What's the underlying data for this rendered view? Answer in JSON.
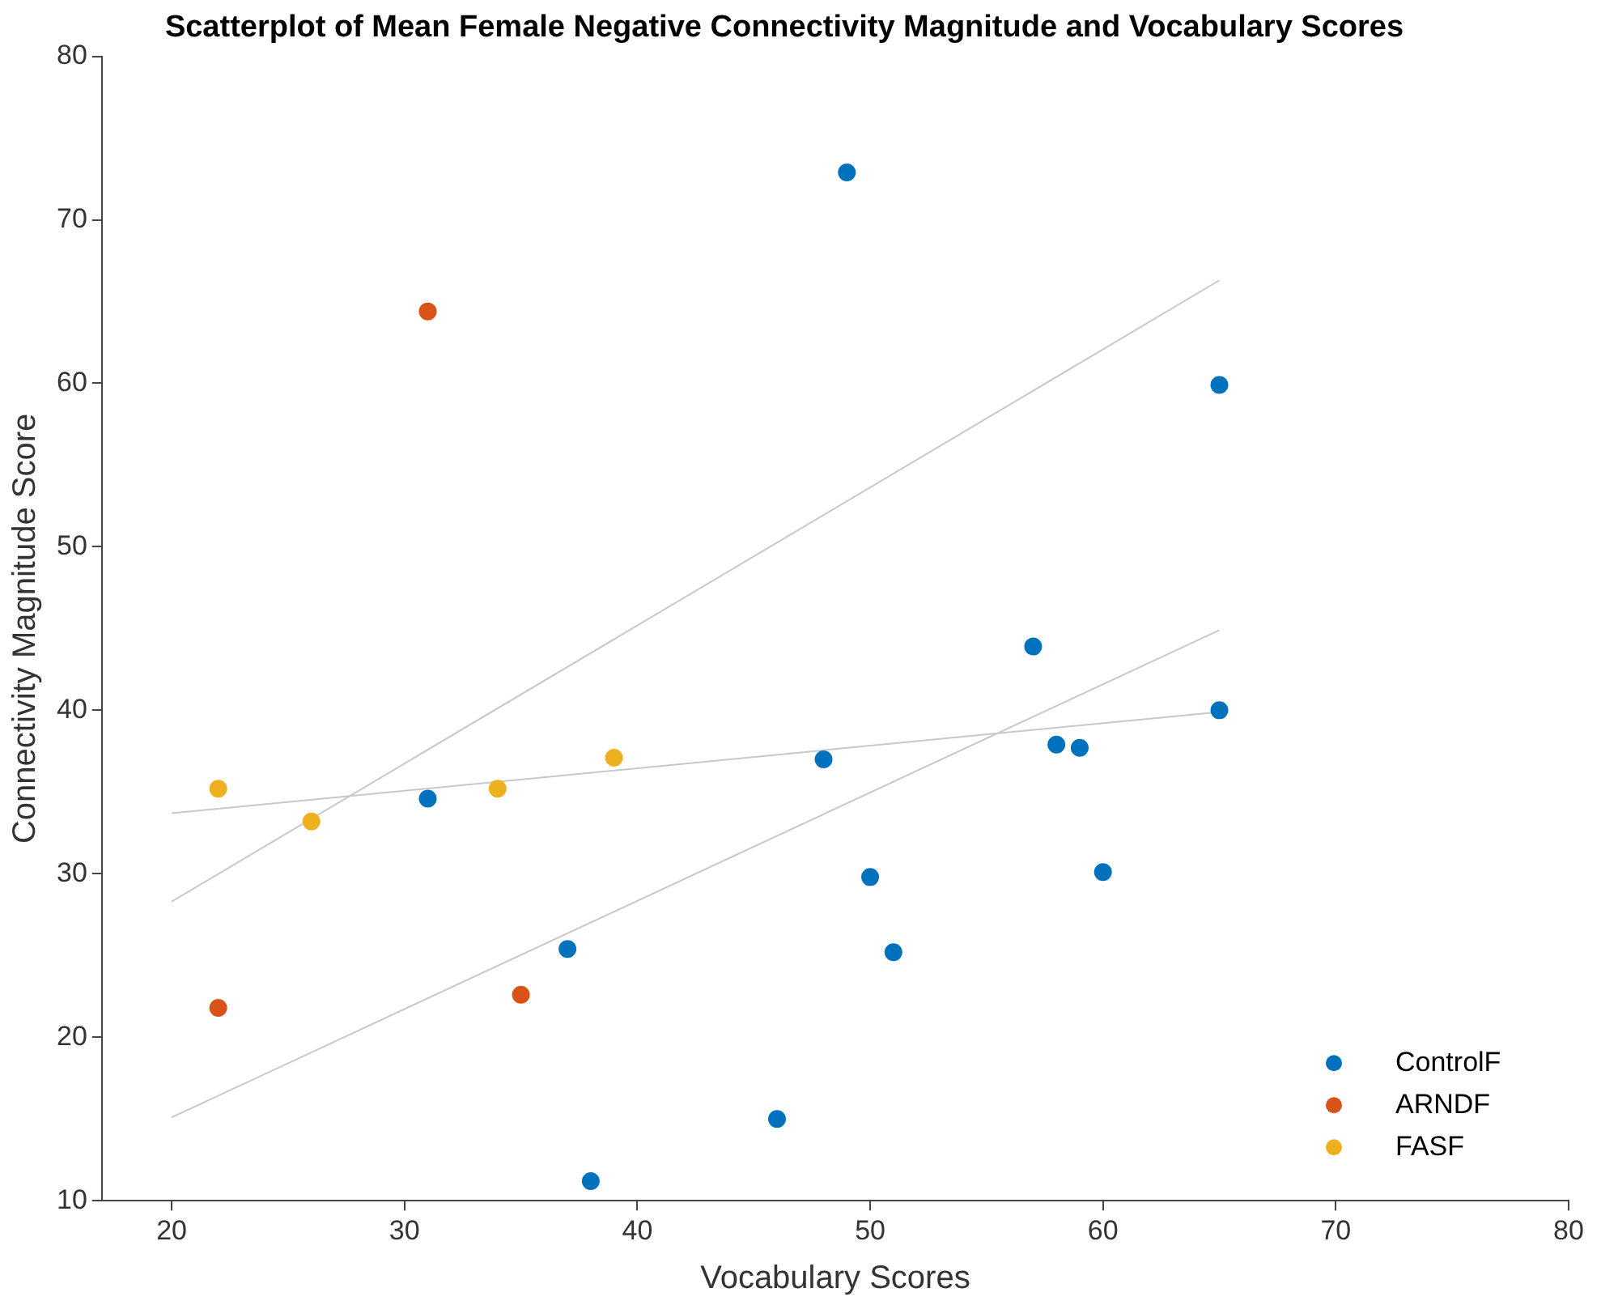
{
  "chart_data": {
    "type": "scatter",
    "title": "Scatterplot of Mean Female Negative Connectivity Magnitude and Vocabulary Scores",
    "xlabel": "Vocabulary Scores",
    "ylabel": "Connectivity Magnitude Score",
    "xlim": [
      17,
      80
    ],
    "ylim": [
      10,
      80
    ],
    "xticks": [
      20,
      30,
      40,
      50,
      60,
      70,
      80
    ],
    "yticks": [
      10,
      20,
      30,
      40,
      50,
      60,
      70,
      80
    ],
    "grid": false,
    "legend": "bottom right",
    "marker": "circle",
    "series": [
      {
        "name": "ControlF",
        "color": "#0072bd",
        "x": [
          49,
          65,
          57,
          65,
          48,
          58,
          59,
          31,
          60,
          50,
          37,
          51,
          46,
          38
        ],
        "values": [
          72.9,
          59.9,
          43.9,
          40.0,
          37.0,
          37.9,
          37.7,
          34.6,
          30.1,
          29.8,
          25.4,
          25.2,
          15.0,
          11.2
        ]
      },
      {
        "name": "ARNDF",
        "color": "#d95319",
        "x": [
          31,
          22,
          35
        ],
        "values": [
          64.4,
          21.8,
          22.6
        ]
      },
      {
        "name": "FASF",
        "color": "#edb120",
        "x": [
          22,
          26,
          34,
          39
        ],
        "values": [
          35.2,
          33.2,
          35.2,
          37.1
        ]
      },
      {
        "type": "line",
        "marker": "none",
        "color": "#c8c8c8",
        "x": [
          20,
          65
        ],
        "values": [
          28.3,
          66.3
        ]
      },
      {
        "type": "line",
        "marker": "none",
        "color": "#c8c8c8",
        "x": [
          20,
          65
        ],
        "values": [
          15.1,
          44.9
        ]
      },
      {
        "type": "line",
        "marker": "none",
        "color": "#c8c8c8",
        "x": [
          20,
          65
        ],
        "values": [
          33.7,
          39.9
        ]
      }
    ]
  }
}
